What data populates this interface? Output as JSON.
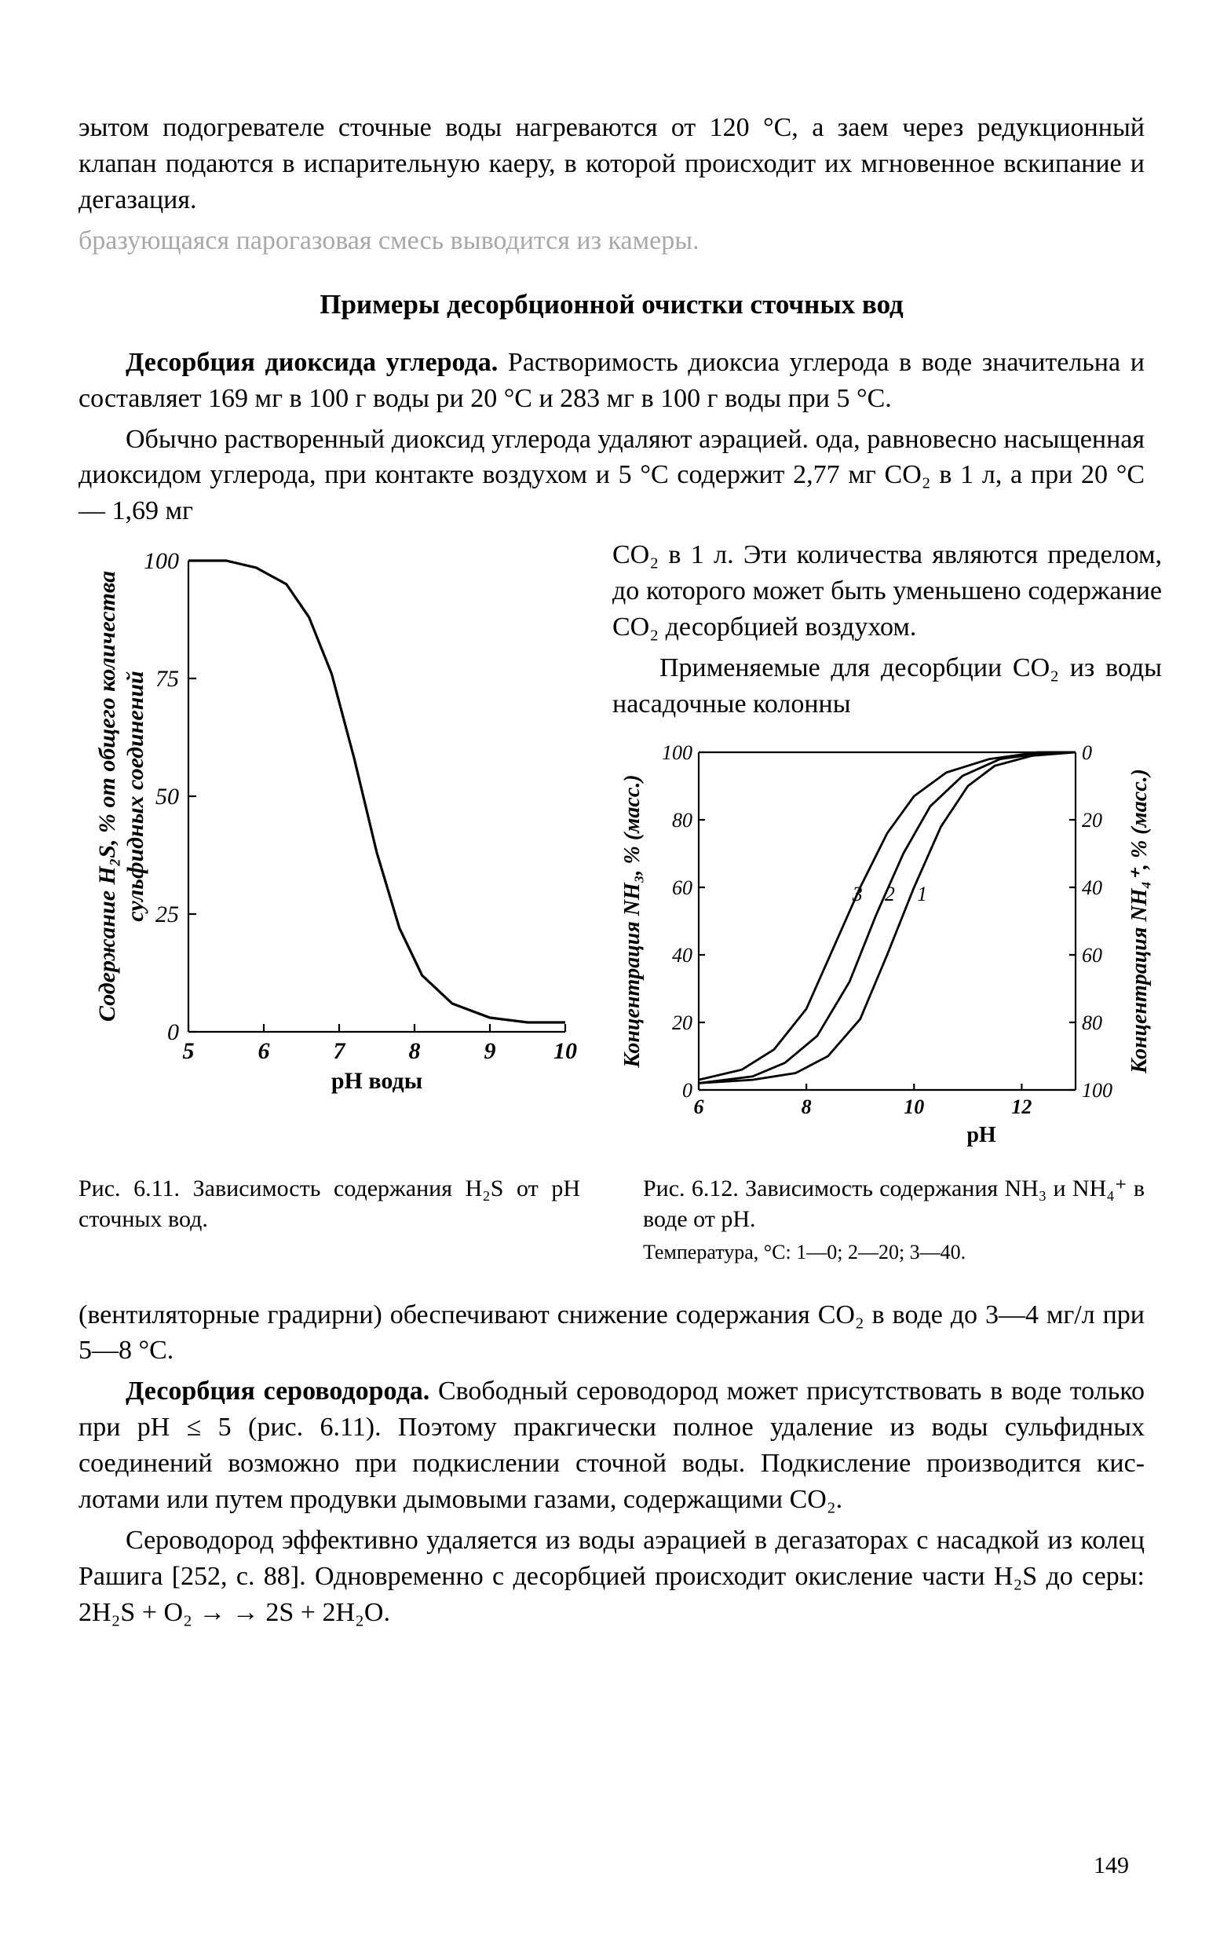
{
  "top": {
    "p1": "эытом подогревателе сточные воды нагреваются от 120 °С, а за­ем через редукционный клапан подаются в испарительную ка­еру, в которой происходит их мгновенное вскипание и дегазация.",
    "p1b": "бразующаяся парогазовая смесь выводится из камеры.",
    "heading": "Примеры десорбционной очистки сточных вод",
    "p2a": "Десорбция диоксида углерода.",
    "p2b": " Растворимость диокси­а углерода в воде значительна и составляет 169 мг в 100 г воды ри 20 °С и 283 мг в 100 г воды при 5 °С.",
    "p3": "Обычно растворенный диоксид углерода удаляют аэрацией. ода, равновесно насыщенная диоксидом углерода, при контакте воздухом и 5 °С содержит 2,77 мг CO₂ в 1 л, а при 20 °С — 1,69 мг"
  },
  "rightText": {
    "p4": "CO₂ в 1 л. Эти количества яв­ляются пределом, до которого может быть уменьшено содержа­ние CO₂ десорбцией воздухом.",
    "p5": "Применяемые для десорбции CO₂ из воды насадочные колонны"
  },
  "fig611": {
    "ylabel_a": "Содержание H₂S, % от общего количества",
    "ylabel_b": "сульфидных соединений",
    "xlabel": "pH воды",
    "y_ticks": [
      0,
      25,
      50,
      75,
      100
    ],
    "x_ticks": [
      5,
      6,
      7,
      8,
      9,
      10
    ],
    "xlim": [
      5,
      10
    ],
    "ylim": [
      0,
      100
    ],
    "curve": [
      [
        5.0,
        100
      ],
      [
        5.5,
        100
      ],
      [
        5.9,
        98.5
      ],
      [
        6.3,
        95
      ],
      [
        6.6,
        88
      ],
      [
        6.9,
        76
      ],
      [
        7.2,
        58
      ],
      [
        7.5,
        38
      ],
      [
        7.8,
        22
      ],
      [
        8.1,
        12
      ],
      [
        8.5,
        6
      ],
      [
        9.0,
        3
      ],
      [
        9.5,
        2
      ],
      [
        10.0,
        2
      ]
    ],
    "line_color": "#000000",
    "line_width": 3.2,
    "axis_color": "#000000",
    "axis_width": 2.2,
    "tick_font": 30,
    "label_font": 30
  },
  "fig612": {
    "ylabel_left": "Концентрация NH₃, % (масс.)",
    "ylabel_right": "Концентрация NH₄⁺, % (масс.)",
    "xlabel": "pH",
    "yL_ticks": [
      0,
      20,
      40,
      60,
      80,
      100
    ],
    "yR_ticks": [
      100,
      80,
      60,
      40,
      20,
      0
    ],
    "x_ticks": [
      6,
      8,
      10,
      12
    ],
    "xlim": [
      6,
      13
    ],
    "ylim": [
      0,
      100
    ],
    "curve_labels": [
      "1",
      "2",
      "3"
    ],
    "curves": [
      [
        [
          6.0,
          2
        ],
        [
          7.0,
          3
        ],
        [
          7.8,
          5
        ],
        [
          8.4,
          10
        ],
        [
          9.0,
          21
        ],
        [
          9.5,
          40
        ],
        [
          10.0,
          60
        ],
        [
          10.5,
          78
        ],
        [
          11.0,
          90
        ],
        [
          11.5,
          96
        ],
        [
          12.2,
          99
        ],
        [
          13.0,
          100
        ]
      ],
      [
        [
          6.0,
          2
        ],
        [
          7.0,
          4
        ],
        [
          7.6,
          8
        ],
        [
          8.2,
          16
        ],
        [
          8.8,
          32
        ],
        [
          9.3,
          52
        ],
        [
          9.8,
          70
        ],
        [
          10.3,
          84
        ],
        [
          10.9,
          93
        ],
        [
          11.6,
          98
        ],
        [
          12.5,
          100
        ],
        [
          13.0,
          100
        ]
      ],
      [
        [
          6.0,
          3
        ],
        [
          6.8,
          6
        ],
        [
          7.4,
          12
        ],
        [
          8.0,
          24
        ],
        [
          8.5,
          42
        ],
        [
          9.0,
          60
        ],
        [
          9.5,
          76
        ],
        [
          10.0,
          87
        ],
        [
          10.6,
          94
        ],
        [
          11.4,
          98
        ],
        [
          12.3,
          100
        ],
        [
          13.0,
          100
        ]
      ]
    ],
    "line_color": "#000000",
    "line_width": 2.8,
    "axis_color": "#000000",
    "axis_width": 2.2,
    "tick_font": 26,
    "label_font": 28
  },
  "captions": {
    "c611": "Рис. 6.11. Зависимость содер­жания H₂S от pH сточных вод.",
    "c612": "Рис. 6.12. Зависимость содер­жания NH₃ и NH₄⁺ в воде от pH.",
    "c612b": "Температура, °С: 1—0; 2—20; 3—40."
  },
  "bottom": {
    "p6": "(вентиляторные градирни) обеспечивают снижение содержания CO₂ в воде до 3—4 мг/л при 5—8 °С.",
    "p7a": "Десорбция сероводорода.",
    "p7b": " Свободный сероводород может при­сутствовать в воде только при pH ≤ 5 (рис. 6.11). Поэтому прак­гически полное удаление из воды сульфидных соединений возможно при подкислении сточной воды. Подкисление производится кис­лотами или путем продувки дымовыми газами, содержащими CO₂.",
    "p8": "Сероводород эффективно удаляется из воды аэрацией в дегаза­торах с насадкой из колец Рашига [252, с. 88]. Одновременно с де­сорбцией происходит окисление части H₂S до серы: 2H₂S + O₂ → → 2S + 2H₂O."
  },
  "pagenum": "149"
}
